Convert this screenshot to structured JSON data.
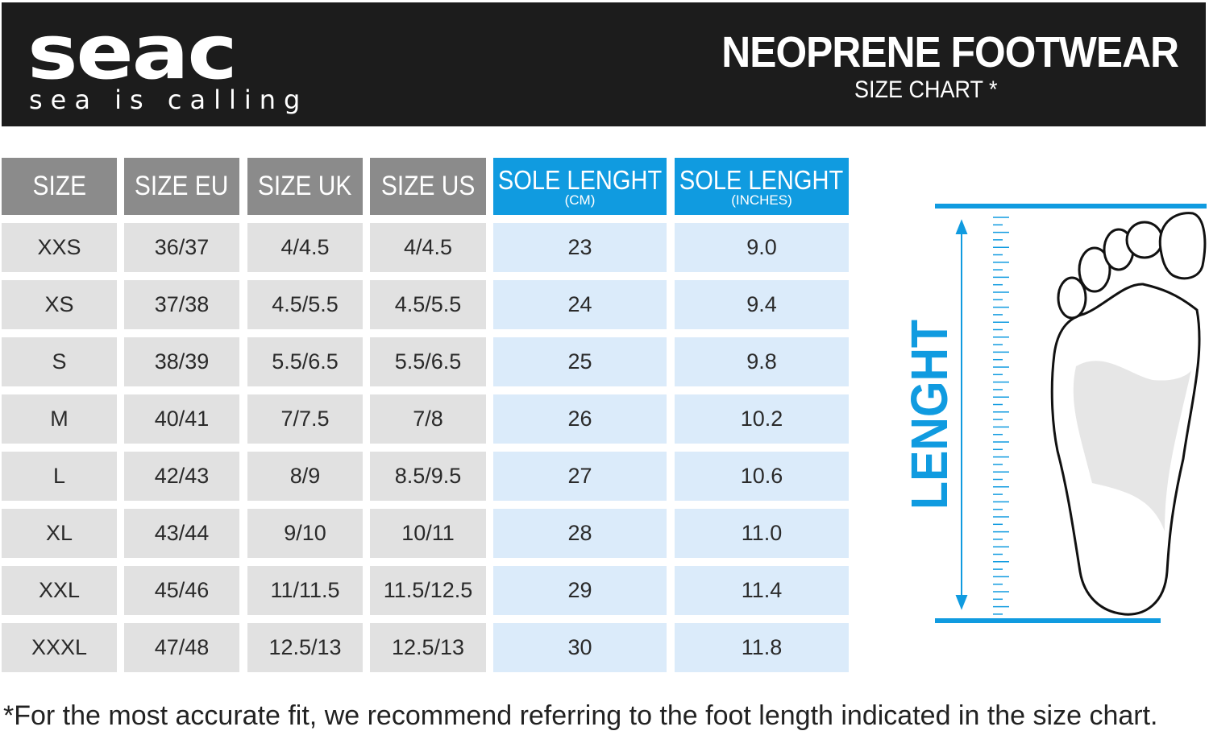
{
  "header": {
    "brand": "seac",
    "tagline": "sea is calling",
    "title": "NEOPRENE FOOTWEAR",
    "subtitle": "SIZE CHART *"
  },
  "table": {
    "columns": [
      {
        "label": "SIZE",
        "unit": ""
      },
      {
        "label": "SIZE EU",
        "unit": ""
      },
      {
        "label": "SIZE UK",
        "unit": ""
      },
      {
        "label": "SIZE US",
        "unit": ""
      },
      {
        "label": "SOLE LENGHT",
        "unit": "(CM)"
      },
      {
        "label": "SOLE LENGHT",
        "unit": "(INCHES)"
      }
    ],
    "rows": [
      [
        "XXS",
        "36/37",
        "4/4.5",
        "4/4.5",
        "23",
        "9.0"
      ],
      [
        "XS",
        "37/38",
        "4.5/5.5",
        "4.5/5.5",
        "24",
        "9.4"
      ],
      [
        "S",
        "38/39",
        "5.5/6.5",
        "5.5/6.5",
        "25",
        "9.8"
      ],
      [
        "M",
        "40/41",
        "7/7.5",
        "7/8",
        "26",
        "10.2"
      ],
      [
        "L",
        "42/43",
        "8/9",
        "8.5/9.5",
        "27",
        "10.6"
      ],
      [
        "XL",
        "43/44",
        "9/10",
        "10/11",
        "28",
        "11.0"
      ],
      [
        "XXL",
        "45/46",
        "11/11.5",
        "11.5/12.5",
        "29",
        "11.4"
      ],
      [
        "XXXL",
        "47/48",
        "12.5/13",
        "12.5/13",
        "30",
        "11.8"
      ]
    ]
  },
  "diagram": {
    "label": "LENGHT"
  },
  "colors": {
    "accent": "#109be0",
    "accent_light": "#dbebfa",
    "gray_header": "#8b8b8b",
    "gray_cell": "#e1e1e1",
    "bar": "#1c1c1c"
  },
  "footnote": "*For the most accurate fit, we recommend referring to the foot length indicated in the size chart."
}
